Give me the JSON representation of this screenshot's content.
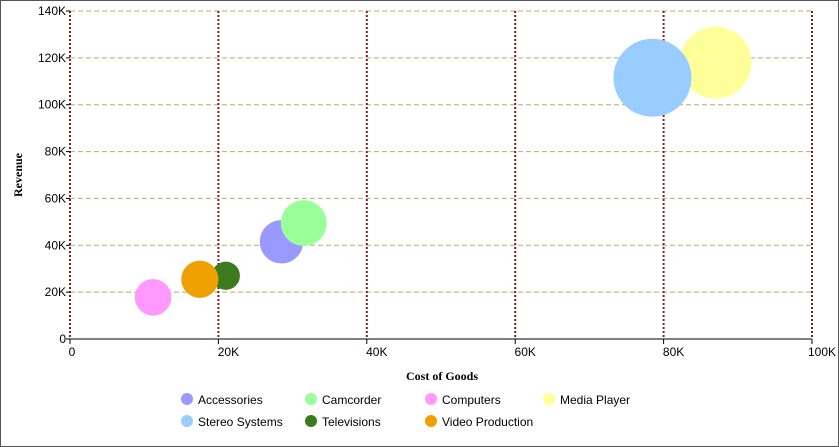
{
  "chart_data": {
    "type": "scatter",
    "subtype": "bubble",
    "xlabel": "Cost of Goods",
    "ylabel": "Revenue",
    "xlim": [
      0,
      100000
    ],
    "ylim": [
      0,
      140000
    ],
    "x_ticks": [
      {
        "value": 0,
        "label": "0"
      },
      {
        "value": 20000,
        "label": "20K"
      },
      {
        "value": 40000,
        "label": "40K"
      },
      {
        "value": 60000,
        "label": "60K"
      },
      {
        "value": 80000,
        "label": "80K"
      },
      {
        "value": 100000,
        "label": "100K"
      }
    ],
    "y_ticks": [
      {
        "value": 0,
        "label": "0"
      },
      {
        "value": 20000,
        "label": "20K"
      },
      {
        "value": 40000,
        "label": "40K"
      },
      {
        "value": 60000,
        "label": "60K"
      },
      {
        "value": 80000,
        "label": "80K"
      },
      {
        "value": 100000,
        "label": "100K"
      },
      {
        "value": 120000,
        "label": "120K"
      },
      {
        "value": 140000,
        "label": "140K"
      }
    ],
    "grid": {
      "vertical": true,
      "horizontal": true
    },
    "legend_position": "bottom",
    "series": [
      {
        "name": "Accessories",
        "color": "#9999ff",
        "x": 28500,
        "y": 41500,
        "size": 45000
      },
      {
        "name": "Camcorder",
        "color": "#99ff99",
        "x": 31500,
        "y": 49500,
        "size": 50000
      },
      {
        "name": "Computers",
        "color": "#ff99ff",
        "x": 11200,
        "y": 17800,
        "size": 32000
      },
      {
        "name": "Media Player",
        "color": "#ffff99",
        "x": 87000,
        "y": 118000,
        "size": 123000
      },
      {
        "name": "Stereo Systems",
        "color": "#99ccff",
        "x": 78500,
        "y": 111500,
        "size": 145000
      },
      {
        "name": "Televisions",
        "color": "#3b7a1f",
        "x": 21000,
        "y": 27000,
        "size": 19000
      },
      {
        "name": "Video Production",
        "color": "#eea000",
        "x": 17500,
        "y": 25500,
        "size": 33000
      }
    ]
  }
}
